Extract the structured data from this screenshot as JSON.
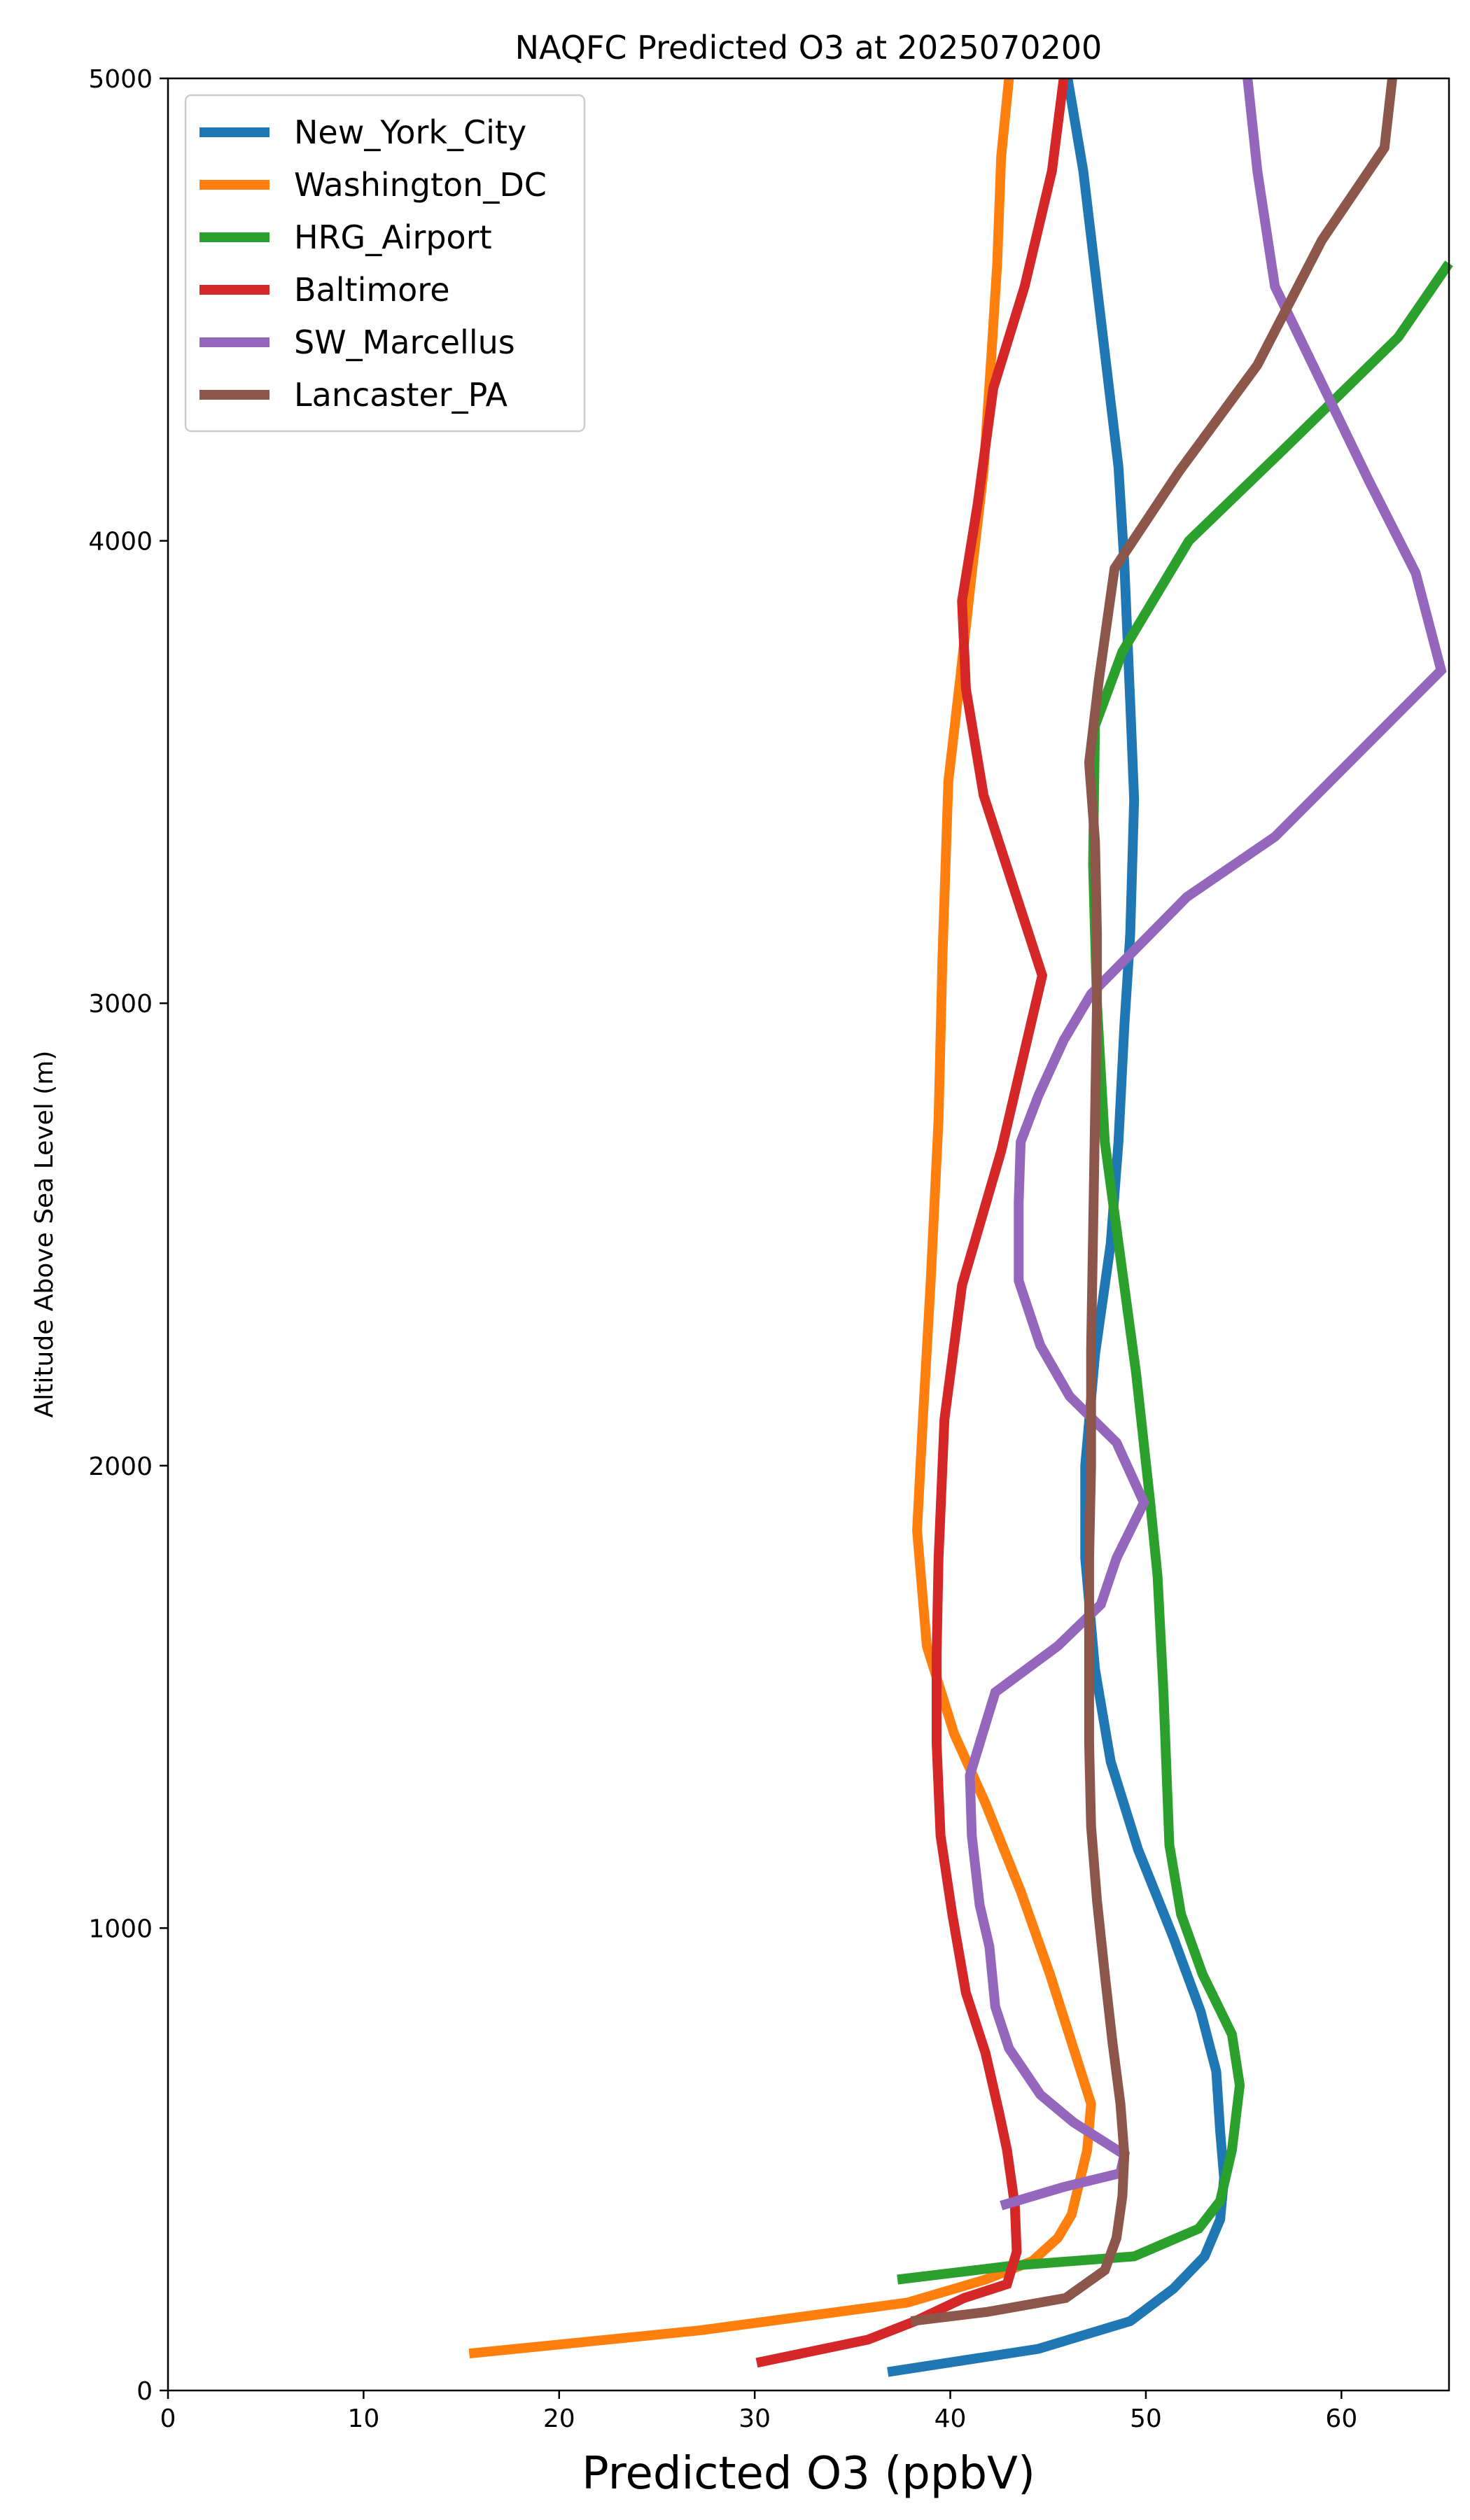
{
  "chart_data": {
    "type": "line",
    "title": "NAQFC Predicted O3 at 2025070200",
    "xlabel": "Predicted O3 (ppbV)",
    "ylabel": "Altitude Above Sea Level (m)",
    "xlim": [
      0,
      65.5
    ],
    "ylim": [
      0,
      5000
    ],
    "xticks": [
      0,
      10,
      20,
      30,
      40,
      50,
      60
    ],
    "yticks": [
      0,
      1000,
      2000,
      3000,
      4000,
      5000
    ],
    "legend_position": "top-left",
    "grid": false,
    "series": [
      {
        "name": "New_York_City",
        "color": "#1f77b4",
        "points": [
          [
            36.8,
            40
          ],
          [
            44.5,
            90
          ],
          [
            49.2,
            150
          ],
          [
            51.4,
            220
          ],
          [
            53.0,
            290
          ],
          [
            53.8,
            370
          ],
          [
            54.0,
            460
          ],
          [
            53.8,
            560
          ],
          [
            53.6,
            690
          ],
          [
            52.8,
            820
          ],
          [
            51.4,
            980
          ],
          [
            49.6,
            1170
          ],
          [
            48.2,
            1360
          ],
          [
            47.4,
            1560
          ],
          [
            46.9,
            1800
          ],
          [
            46.9,
            2000
          ],
          [
            47.4,
            2240
          ],
          [
            48.2,
            2480
          ],
          [
            48.6,
            2700
          ],
          [
            48.9,
            2950
          ],
          [
            49.2,
            3150
          ],
          [
            49.4,
            3440
          ],
          [
            49.2,
            3650
          ],
          [
            48.9,
            3950
          ],
          [
            48.6,
            4160
          ],
          [
            48.2,
            4300
          ],
          [
            47.5,
            4550
          ],
          [
            46.8,
            4800
          ],
          [
            46.0,
            5000
          ]
        ]
      },
      {
        "name": "Washington_DC",
        "color": "#ff7f0e",
        "points": [
          [
            15.4,
            80
          ],
          [
            27.2,
            130
          ],
          [
            37.8,
            190
          ],
          [
            41.8,
            240
          ],
          [
            44.2,
            280
          ],
          [
            45.5,
            330
          ],
          [
            46.2,
            380
          ],
          [
            46.6,
            450
          ],
          [
            47.0,
            520
          ],
          [
            47.2,
            620
          ],
          [
            46.3,
            740
          ],
          [
            45.1,
            900
          ],
          [
            43.6,
            1080
          ],
          [
            41.8,
            1270
          ],
          [
            40.2,
            1420
          ],
          [
            38.8,
            1610
          ],
          [
            38.3,
            1860
          ],
          [
            38.6,
            2100
          ],
          [
            39.0,
            2400
          ],
          [
            39.4,
            2750
          ],
          [
            39.6,
            3100
          ],
          [
            39.9,
            3480
          ],
          [
            40.5,
            3700
          ],
          [
            41.1,
            3930
          ],
          [
            41.7,
            4150
          ],
          [
            42.1,
            4400
          ],
          [
            42.4,
            4600
          ],
          [
            42.6,
            4830
          ],
          [
            43.0,
            5000
          ]
        ]
      },
      {
        "name": "HRG_Airport",
        "color": "#2ca02c",
        "points": [
          [
            37.3,
            240
          ],
          [
            43.2,
            270
          ],
          [
            49.4,
            290
          ],
          [
            52.7,
            350
          ],
          [
            53.8,
            410
          ],
          [
            54.4,
            520
          ],
          [
            54.8,
            660
          ],
          [
            54.4,
            770
          ],
          [
            52.9,
            900
          ],
          [
            51.8,
            1030
          ],
          [
            51.2,
            1180
          ],
          [
            50.9,
            1510
          ],
          [
            50.6,
            1760
          ],
          [
            50.2,
            1930
          ],
          [
            49.5,
            2200
          ],
          [
            48.7,
            2450
          ],
          [
            47.9,
            2700
          ],
          [
            47.5,
            3000
          ],
          [
            47.3,
            3300
          ],
          [
            47.4,
            3600
          ],
          [
            48.8,
            3760
          ],
          [
            52.2,
            4000
          ],
          [
            57.1,
            4200
          ],
          [
            62.9,
            4440
          ],
          [
            65.5,
            4600
          ]
        ]
      },
      {
        "name": "Baltimore",
        "color": "#d62728",
        "points": [
          [
            30.1,
            60
          ],
          [
            35.8,
            110
          ],
          [
            38.2,
            150
          ],
          [
            40.7,
            200
          ],
          [
            42.9,
            230
          ],
          [
            43.4,
            300
          ],
          [
            43.3,
            400
          ],
          [
            42.9,
            520
          ],
          [
            42.5,
            600
          ],
          [
            41.8,
            730
          ],
          [
            40.8,
            860
          ],
          [
            40.1,
            1030
          ],
          [
            39.5,
            1200
          ],
          [
            39.3,
            1400
          ],
          [
            39.3,
            1590
          ],
          [
            39.4,
            1800
          ],
          [
            39.7,
            2100
          ],
          [
            40.6,
            2390
          ],
          [
            42.6,
            2680
          ],
          [
            44.7,
            3060
          ],
          [
            41.7,
            3450
          ],
          [
            40.8,
            3680
          ],
          [
            40.6,
            3870
          ],
          [
            41.4,
            4080
          ],
          [
            42.2,
            4330
          ],
          [
            43.8,
            4550
          ],
          [
            45.2,
            4800
          ],
          [
            45.8,
            5000
          ]
        ]
      },
      {
        "name": "SW_Marcellus",
        "color": "#9467bd",
        "points": [
          [
            42.6,
            400
          ],
          [
            45.8,
            440
          ],
          [
            48.7,
            470
          ],
          [
            48.9,
            510
          ],
          [
            46.3,
            580
          ],
          [
            44.6,
            640
          ],
          [
            43.0,
            740
          ],
          [
            42.3,
            830
          ],
          [
            42.0,
            960
          ],
          [
            41.5,
            1050
          ],
          [
            41.1,
            1200
          ],
          [
            41.0,
            1330
          ],
          [
            42.3,
            1510
          ],
          [
            45.5,
            1610
          ],
          [
            47.7,
            1700
          ],
          [
            48.5,
            1800
          ],
          [
            49.9,
            1920
          ],
          [
            48.5,
            2050
          ],
          [
            46.1,
            2150
          ],
          [
            44.6,
            2260
          ],
          [
            43.5,
            2400
          ],
          [
            43.5,
            2570
          ],
          [
            43.6,
            2700
          ],
          [
            44.5,
            2800
          ],
          [
            45.8,
            2920
          ],
          [
            47.2,
            3020
          ],
          [
            52.1,
            3230
          ],
          [
            56.6,
            3360
          ],
          [
            65.1,
            3720
          ],
          [
            63.8,
            3930
          ],
          [
            61.4,
            4130
          ],
          [
            56.6,
            4550
          ],
          [
            55.7,
            4800
          ],
          [
            55.2,
            5000
          ]
        ]
      },
      {
        "name": "Lancaster_PA",
        "color": "#8c564b",
        "points": [
          [
            38.0,
            150
          ],
          [
            41.9,
            170
          ],
          [
            45.9,
            200
          ],
          [
            47.9,
            260
          ],
          [
            48.5,
            330
          ],
          [
            48.8,
            420
          ],
          [
            48.9,
            510
          ],
          [
            48.7,
            620
          ],
          [
            48.3,
            750
          ],
          [
            47.9,
            900
          ],
          [
            47.5,
            1060
          ],
          [
            47.2,
            1220
          ],
          [
            47.1,
            1400
          ],
          [
            47.1,
            1600
          ],
          [
            47.1,
            1800
          ],
          [
            47.2,
            2000
          ],
          [
            47.2,
            2250
          ],
          [
            47.3,
            2500
          ],
          [
            47.4,
            2750
          ],
          [
            47.5,
            3000
          ],
          [
            47.5,
            3150
          ],
          [
            47.4,
            3350
          ],
          [
            47.1,
            3520
          ],
          [
            47.6,
            3700
          ],
          [
            48.4,
            3940
          ],
          [
            51.7,
            4150
          ],
          [
            55.7,
            4380
          ],
          [
            59.0,
            4650
          ],
          [
            62.2,
            4850
          ],
          [
            62.6,
            5000
          ]
        ]
      }
    ]
  }
}
